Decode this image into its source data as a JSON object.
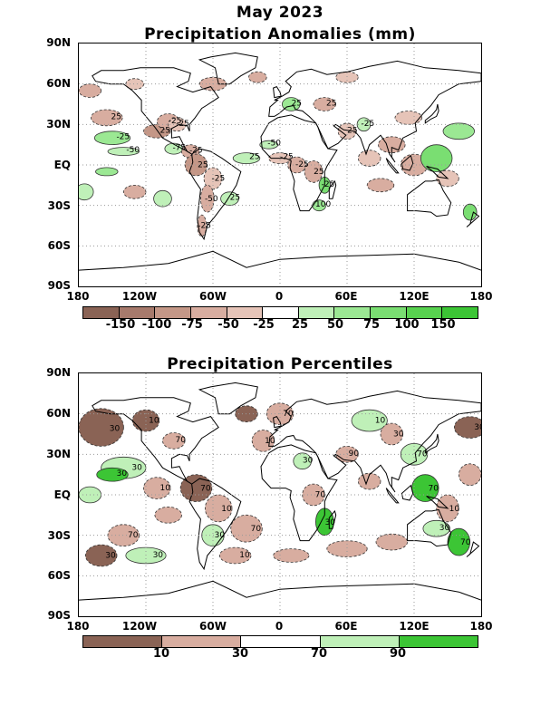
{
  "title": "May 2023",
  "panel1": {
    "title": "Precipitation Anomalies (mm)",
    "colorbar": {
      "colors": [
        "#8a6355",
        "#a77a6c",
        "#c49787",
        "#d8ada0",
        "#e6c4b8",
        "#ffffff",
        "#bff0b8",
        "#9be893",
        "#7ade72",
        "#58d24f",
        "#3cc535"
      ],
      "labels": [
        "-150",
        "-100",
        "-75",
        "-50",
        "-25",
        "25",
        "50",
        "75",
        "100",
        "150"
      ]
    },
    "contour_labels": [
      "25",
      "-25",
      "-50",
      "25",
      "-25",
      "-25",
      "-75",
      "-25",
      "25",
      "-25",
      "-50",
      "-25",
      "25",
      "25",
      "-50",
      "-25",
      "-25",
      "25",
      "-25",
      "100",
      "25",
      "25",
      "25",
      "-25"
    ]
  },
  "panel2": {
    "title": "Precipitation Percentiles",
    "colorbar": {
      "colors": [
        "#8a6355",
        "#d8ada0",
        "#ffffff",
        "#bff0b8",
        "#3cc535"
      ],
      "labels": [
        "10",
        "30",
        "70",
        "90"
      ]
    },
    "contour_labels": [
      "30",
      "10",
      "70",
      "30",
      "30",
      "10",
      "70",
      "10",
      "30",
      "70",
      "70",
      "30",
      "30",
      "10",
      "10",
      "70",
      "30",
      "70",
      "30",
      "90",
      "10",
      "30",
      "70",
      "70",
      "10",
      "30",
      "70",
      "30"
    ]
  },
  "axes": {
    "lat_labels": [
      "90N",
      "60N",
      "30N",
      "EQ",
      "30S",
      "60S",
      "90S"
    ],
    "lon_labels": [
      "180",
      "120W",
      "60W",
      "0",
      "60E",
      "120E",
      "180"
    ]
  },
  "map_colors": {
    "land": "#ffffff",
    "coast": "#000000",
    "grid": "#999999",
    "contour": "#333333"
  }
}
